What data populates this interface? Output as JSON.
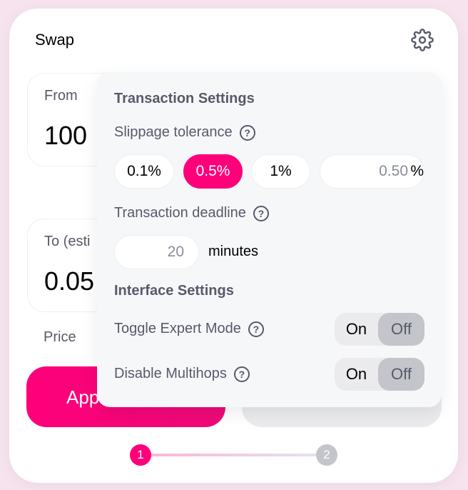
{
  "header": {
    "title": "Swap",
    "settings_icon": "gear-icon"
  },
  "from": {
    "label": "From",
    "value": "100"
  },
  "to": {
    "label": "To (esti",
    "value": "0.05"
  },
  "price_label": "Price",
  "approve_label": "App",
  "steps": [
    "1",
    "2"
  ],
  "accent": "#ff007a",
  "settings": {
    "title": "Transaction Settings",
    "slippage_label": "Slippage tolerance",
    "slippage_options": [
      "0.1%",
      "0.5%",
      "1%"
    ],
    "slippage_selected": "0.5%",
    "slippage_input": "0.50",
    "percent": "%",
    "deadline_label": "Transaction deadline",
    "deadline_value": "20",
    "deadline_unit": "minutes",
    "interface_title": "Interface Settings",
    "expert_label": "Toggle Expert Mode",
    "multihops_label": "Disable Multihops",
    "on": "On",
    "off": "Off",
    "expert_state": "Off",
    "multihops_state": "Off",
    "help": "?"
  }
}
